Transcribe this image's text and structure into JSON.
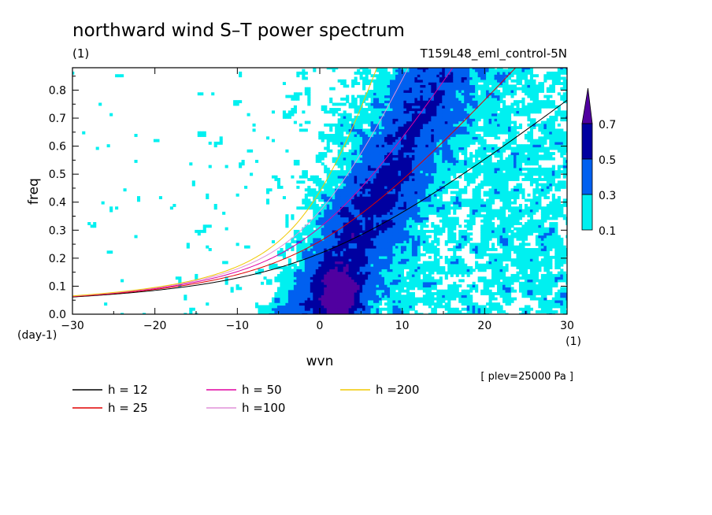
{
  "chart_data": {
    "type": "heatmap",
    "title": "northward wind S–T power spectrum",
    "subtitle_left": "(1)",
    "subtitle_right": "T159L48_eml_control-5N",
    "xlabel": "wvn",
    "ylabel": "freq",
    "xunit": "(1)",
    "yunit": "(day-1)",
    "note": "[ plev=25000 Pa ]",
    "xlim": [
      -30,
      30
    ],
    "ylim": [
      0,
      0.88
    ],
    "xticks": [
      -30,
      -20,
      -10,
      0,
      10,
      20,
      30
    ],
    "xtick_labels": [
      "−30",
      "−20",
      "−10",
      "0",
      "10",
      "20",
      "30"
    ],
    "yticks": [
      0,
      0.1,
      0.2,
      0.3,
      0.4,
      0.5,
      0.6,
      0.7,
      0.8
    ],
    "ytick_labels": [
      "0.0",
      "0.1",
      "0.2",
      "0.3",
      "0.4",
      "0.5",
      "0.6",
      "0.7",
      "0.8"
    ],
    "colorbar": {
      "levels": [
        0.1,
        0.3,
        0.5,
        0.7
      ],
      "labels": [
        "0.1",
        "0.3",
        "0.5",
        "0.7"
      ],
      "colors": [
        "#00f0f0",
        "#0060f0",
        "#0000a0",
        "#5000a0"
      ]
    },
    "dispersion_curves": [
      {
        "name": "h = 12",
        "h": 12,
        "color": "#000000"
      },
      {
        "name": "h = 25",
        "h": 25,
        "color": "#e00000"
      },
      {
        "name": "h = 50",
        "h": 50,
        "color": "#e000a0"
      },
      {
        "name": "h =100",
        "h": 100,
        "color": "#e090d8"
      },
      {
        "name": "h =200",
        "h": 200,
        "color": "#f0c800"
      }
    ]
  }
}
